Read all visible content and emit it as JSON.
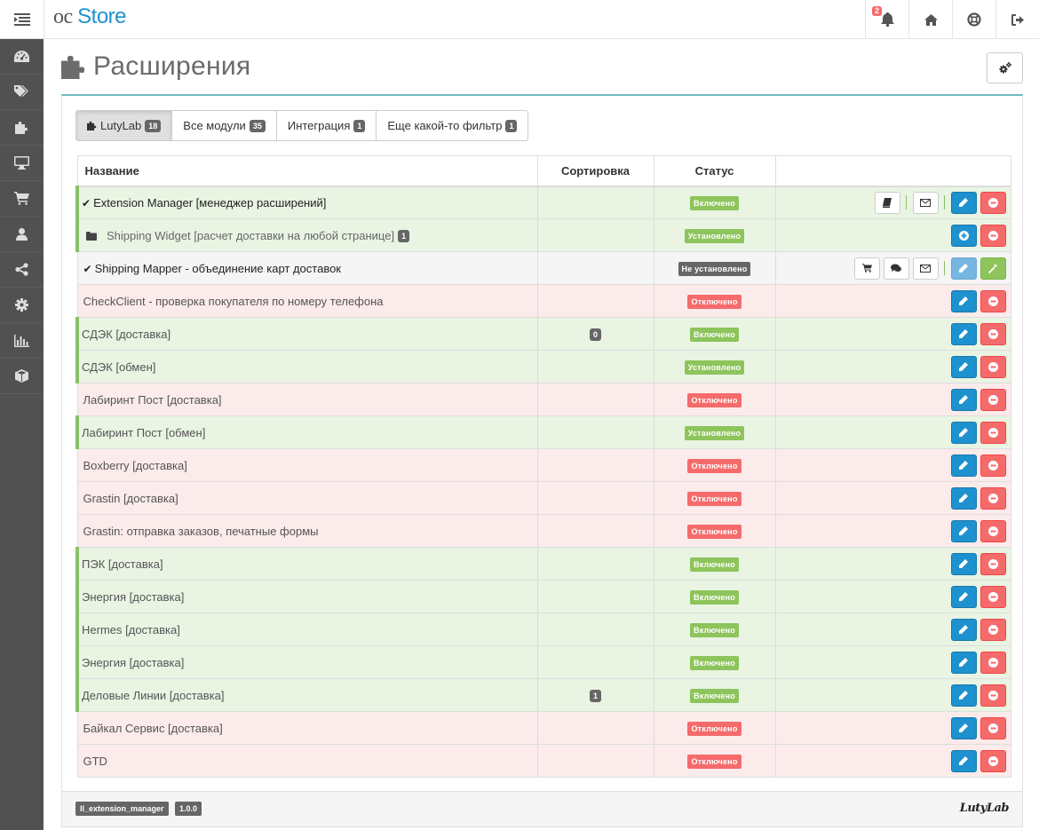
{
  "header": {
    "logo_prefix": "oc",
    "logo_name": "Store",
    "notifications_count": "2",
    "icons": [
      "menu-icon",
      "bell-icon",
      "home-icon",
      "life-ring-icon",
      "sign-out-icon"
    ]
  },
  "sidebar": {
    "items": [
      "dashboard-icon",
      "tags-icon",
      "puzzle-icon",
      "desktop-icon",
      "cart-icon",
      "user-icon",
      "share-icon",
      "cog-icon",
      "bar-chart-icon",
      "cube-icon"
    ]
  },
  "page": {
    "title": "Расширения"
  },
  "tabs": [
    {
      "label": "LutyLab",
      "count": "18"
    },
    {
      "label": "Все модули",
      "count": "35"
    },
    {
      "label": "Интеграция",
      "count": "1"
    },
    {
      "label": "Еще какой-то фильтр",
      "count": "1"
    }
  ],
  "table": {
    "headers": {
      "name": "Название",
      "sort": "Сортировка",
      "status": "Статус"
    },
    "rows": [
      {
        "name": "Extension Manager [менеджер расширений]",
        "sort": "",
        "status": "Включено"
      },
      {
        "name": "Shipping Widget [расчет доставки на любой странице]",
        "count": "1",
        "sort": "",
        "status": "Установлено"
      },
      {
        "name": "Shipping Mapper - объединение карт доставок",
        "sort": "",
        "status": "Не установлено"
      },
      {
        "name": "CheckClient - проверка покупателя по номеру телефона",
        "sort": "",
        "status": "Отключено"
      },
      {
        "name": "СДЭК [доставка]",
        "sort": "0",
        "status": "Включено"
      },
      {
        "name": "СДЭК [обмен]",
        "sort": "",
        "status": "Установлено"
      },
      {
        "name": "Лабиринт Пост [доставка]",
        "sort": "",
        "status": "Отключено"
      },
      {
        "name": "Лабиринт Пост [обмен]",
        "sort": "",
        "status": "Установлено"
      },
      {
        "name": "Boxberry [доставка]",
        "sort": "",
        "status": "Отключено"
      },
      {
        "name": "Grastin [доставка]",
        "sort": "",
        "status": "Отключено"
      },
      {
        "name": "Grastin: отправка заказов, печатные формы",
        "sort": "",
        "status": "Отключено"
      },
      {
        "name": "ПЭК [доставка]",
        "sort": "",
        "status": "Включено"
      },
      {
        "name": "Энергия [доставка]",
        "sort": "",
        "status": "Включено"
      },
      {
        "name": "Hermes [доставка]",
        "sort": "",
        "status": "Включено"
      },
      {
        "name": "Энергия [доставка]",
        "sort": "",
        "status": "Включено"
      },
      {
        "name": "Деловые Линии [доставка]",
        "sort": "1",
        "status": "Включено"
      },
      {
        "name": "Байкал Сервис [доставка]",
        "sort": "",
        "status": "Отключено"
      },
      {
        "name": "GTD",
        "sort": "",
        "status": "Отключено"
      }
    ]
  },
  "footer": {
    "module_code": "ll_extension_manager",
    "version": "1.0.0",
    "brand": "LutyLab"
  }
}
